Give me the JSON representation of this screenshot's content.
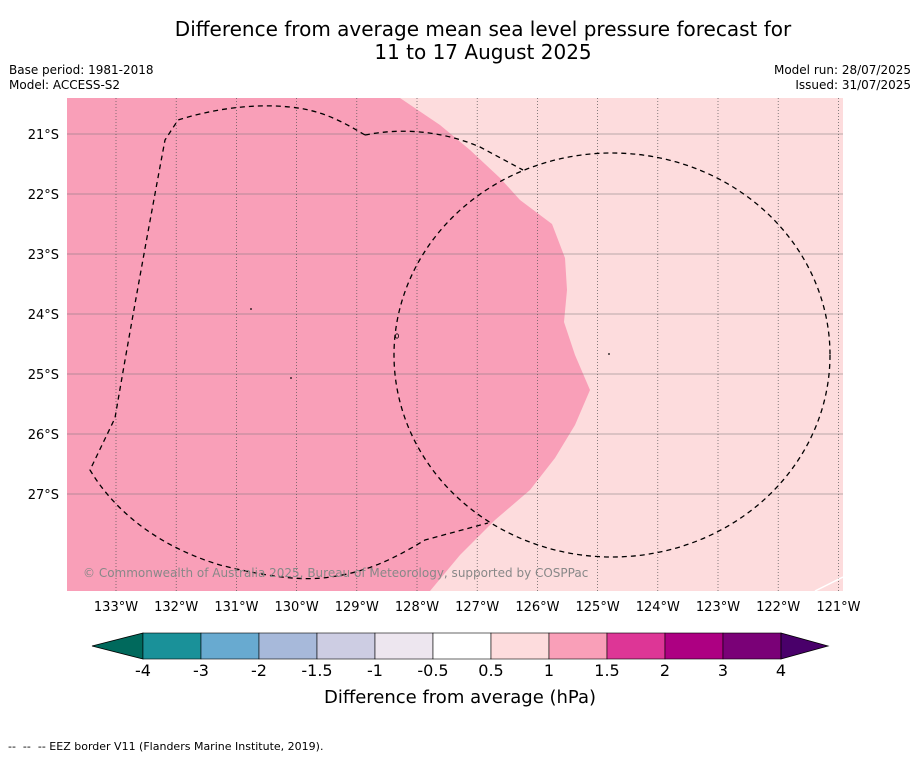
{
  "title": {
    "line1": "Difference from average mean sea level pressure forecast for",
    "line2": "11 to 17 August 2025"
  },
  "meta_left": {
    "base_period": "Base period: 1981-2018",
    "model": "Model: ACCESS-S2"
  },
  "meta_right": {
    "model_run": "Model run: 28/07/2025",
    "issued": "Issued: 31/07/2025"
  },
  "map": {
    "lat_labels": [
      "21°S",
      "22°S",
      "23°S",
      "24°S",
      "25°S",
      "26°S",
      "27°S"
    ],
    "lon_labels": [
      "133°W",
      "132°W",
      "131°W",
      "130°W",
      "129°W",
      "128°W",
      "127°W",
      "126°W",
      "125°W",
      "124°W",
      "123°W",
      "122°W",
      "121°W"
    ],
    "copyright": "© Commonwealth of Australia 2025, Bureau of Meteorology, supported by COSPPac",
    "fill_colors": {
      "range_1_to_1_5": "#f99fb8",
      "range_0_5_to_1": "#fddcdd"
    }
  },
  "colorbar": {
    "tick_labels": [
      "-4",
      "-3",
      "-2",
      "-1.5",
      "-1",
      "-0.5",
      "0.5",
      "1",
      "1.5",
      "2",
      "3",
      "4"
    ],
    "colors": [
      "#00695c",
      "#1a9199",
      "#68aad0",
      "#a7b9da",
      "#cdcde3",
      "#ede6ef",
      "#ffffff",
      "#fddcdd",
      "#f99fb8",
      "#dd3696",
      "#ad0082",
      "#7a0177",
      "#49006a"
    ],
    "label": "Difference from average (hPa)"
  },
  "footer": "--  --  -- EEZ border V11 (Flanders Marine Institute, 2019)."
}
